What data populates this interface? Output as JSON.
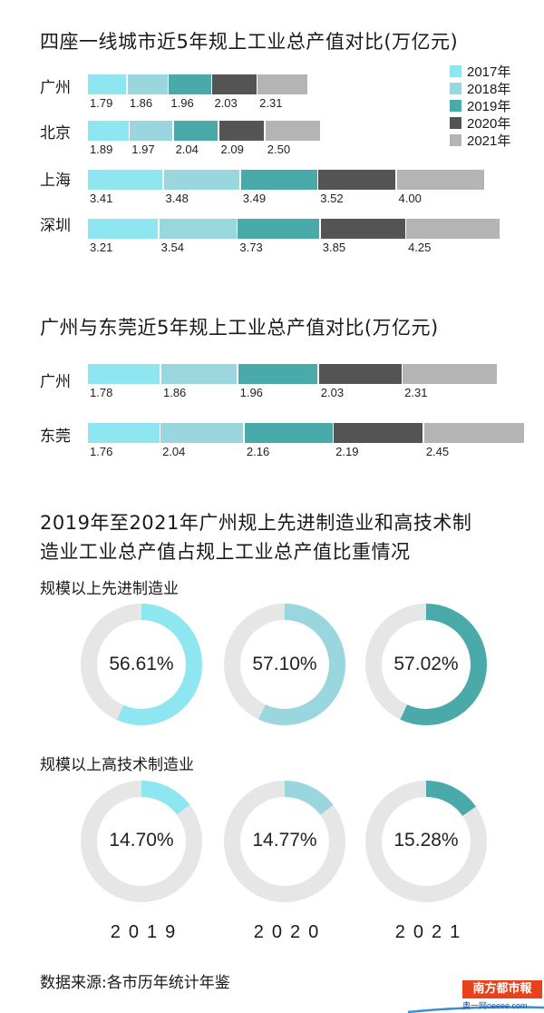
{
  "colors": {
    "2017": "#8ee6f0",
    "2018": "#9ad6de",
    "2019": "#4aaaaa",
    "2020": "#545454",
    "2021": "#b4b4b4",
    "track": "#e6e6e6",
    "logo": "#e8421d"
  },
  "chart_data": [
    {
      "type": "bar",
      "orientation": "horizontal-stacked",
      "title": "四座一线城市近5年规上工业总产值对比(万亿元)",
      "categories": [
        "广州",
        "北京",
        "上海",
        "深圳"
      ],
      "legend": [
        "2017年",
        "2018年",
        "2019年",
        "2020年",
        "2021年"
      ],
      "legend_position": "top-right",
      "series": [
        {
          "name": "2017年",
          "values": [
            1.79,
            1.89,
            3.41,
            3.21
          ]
        },
        {
          "name": "2018年",
          "values": [
            1.86,
            1.97,
            3.48,
            3.54
          ]
        },
        {
          "name": "2019年",
          "values": [
            1.96,
            2.04,
            3.49,
            3.73
          ]
        },
        {
          "name": "2020年",
          "values": [
            2.03,
            2.09,
            3.52,
            3.85
          ]
        },
        {
          "name": "2021年",
          "values": [
            2.31,
            2.5,
            4.0,
            4.25
          ]
        }
      ],
      "value_labels": [
        [
          "1.79",
          "1.86",
          "1.96",
          "2.03",
          "2.31"
        ],
        [
          "1.89",
          "1.97",
          "2.04",
          "2.09",
          "2.50"
        ],
        [
          "3.41",
          "3.48",
          "3.49",
          "3.52",
          "4.00"
        ],
        [
          "3.21",
          "3.54",
          "3.73",
          "3.85",
          "4.25"
        ]
      ]
    },
    {
      "type": "bar",
      "orientation": "horizontal-stacked",
      "title": "广州与东莞近5年规上工业总产值对比(万亿元)",
      "categories": [
        "广州",
        "东莞"
      ],
      "series": [
        {
          "name": "2017年",
          "values": [
            1.78,
            1.76
          ]
        },
        {
          "name": "2018年",
          "values": [
            1.86,
            2.04
          ]
        },
        {
          "name": "2019年",
          "values": [
            1.96,
            2.16
          ]
        },
        {
          "name": "2020年",
          "values": [
            2.03,
            2.19
          ]
        },
        {
          "name": "2021年",
          "values": [
            2.31,
            2.45
          ]
        }
      ],
      "value_labels": [
        [
          "1.78",
          "1.86",
          "1.96",
          "2.03",
          "2.31"
        ],
        [
          "1.76",
          "2.04",
          "2.16",
          "2.19",
          "2.45"
        ]
      ]
    },
    {
      "type": "pie",
      "variant": "donut",
      "title_line1": "2019年至2021年广州规上先进制造业和高技术制",
      "title_line2": "造业工业总产值占规上工业总产值比重情况",
      "group": "规模以上先进制造业",
      "categories": [
        "2019",
        "2020",
        "2021"
      ],
      "values": [
        56.61,
        57.1,
        57.02
      ],
      "labels": [
        "56.61%",
        "57.10%",
        "57.02%"
      ]
    },
    {
      "type": "pie",
      "variant": "donut",
      "group": "规模以上高技术制造业",
      "categories": [
        "2019",
        "2020",
        "2021"
      ],
      "values": [
        14.7,
        14.77,
        15.28
      ],
      "labels": [
        "14.70%",
        "14.77%",
        "15.28%"
      ]
    }
  ],
  "year_labels": [
    "2019",
    "2020",
    "2021"
  ],
  "source": "数据来源:各市历年统计年鉴",
  "logo": {
    "name": "南方都市報",
    "sub": "奥一网oeeee.com"
  }
}
